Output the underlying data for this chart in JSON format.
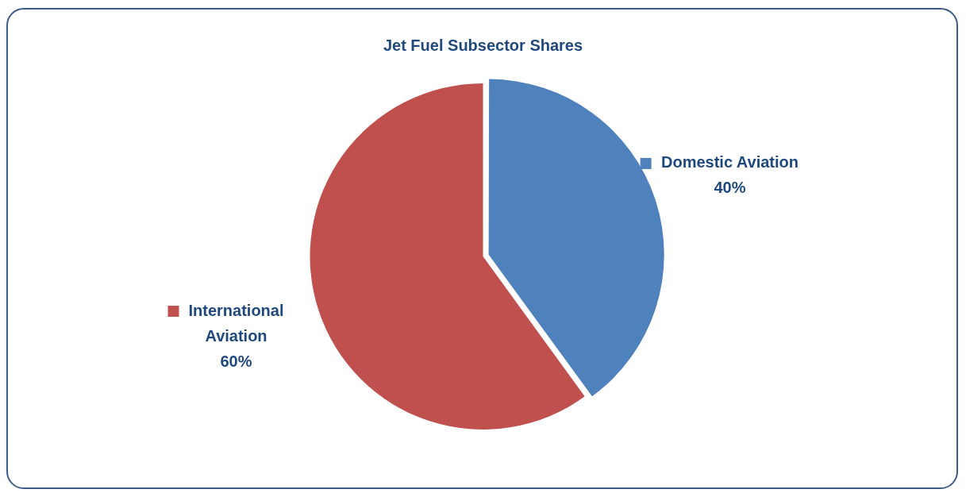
{
  "chart_data": {
    "type": "pie",
    "title": "Jet Fuel Subsector Shares",
    "categories": [
      "Domestic Aviation",
      "International Aviation"
    ],
    "values": [
      40,
      60
    ],
    "colors": [
      "#4f81bd",
      "#c0504d"
    ],
    "value_labels": [
      "40%",
      "60%"
    ],
    "legend": "right"
  }
}
